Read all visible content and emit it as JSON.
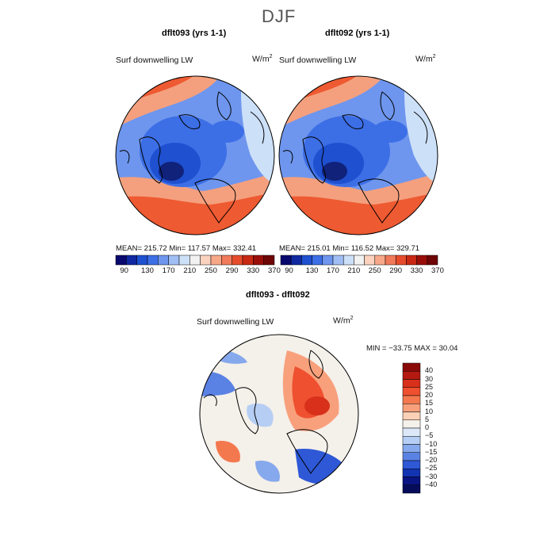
{
  "season": "DJF",
  "panels": [
    {
      "title": "dflt093 (yrs 1-1)",
      "variable": "Surf downwelling LW",
      "units": "W/m",
      "units_sup": "2",
      "stats_text": "MEAN= 215.72   Min= 117.57   Max= 332.41"
    },
    {
      "title": "dflt092 (yrs 1-1)",
      "variable": "Surf downwelling LW",
      "units": "W/m",
      "units_sup": "2",
      "stats_text": "MEAN= 215.01   Min= 116.52   Max= 329.71"
    }
  ],
  "diff_panel": {
    "title": "dflt093 - dflt092",
    "variable": "Surf downwelling LW",
    "units": "W/m",
    "units_sup": "2",
    "minmax_text": "MIN = −33.75  MAX =   30.04"
  },
  "colorbar_abs": {
    "colors": [
      "#08086e",
      "#1028a0",
      "#1e50d0",
      "#3c6ee6",
      "#6e96ee",
      "#a0bef4",
      "#cce0f8",
      "#f2f2f2",
      "#fad2be",
      "#f6a888",
      "#f07a5a",
      "#e64c2c",
      "#c82814",
      "#9a0e0a",
      "#6e0606"
    ],
    "tick_labels": [
      "90",
      "130",
      "170",
      "210",
      "250",
      "290",
      "330",
      "370"
    ]
  },
  "colorbar_diff": {
    "levels_desc": [
      "40",
      "30",
      "25",
      "20",
      "15",
      "10",
      "5",
      "0",
      "−5",
      "−10",
      "−15",
      "−20",
      "−25",
      "−30",
      "−40"
    ],
    "colors_desc": [
      "#8a0a0a",
      "#b41a12",
      "#d8301a",
      "#ee5030",
      "#f4784e",
      "#f8a07c",
      "#fad0b6",
      "#f4f0ea",
      "#dce8f8",
      "#b6cef4",
      "#86a8ec",
      "#5a82e4",
      "#2e58d6",
      "#1234b2",
      "#0a1482",
      "#060c5a"
    ]
  },
  "map_palette": {
    "ocean_warm": "#ee5a32",
    "mid_warm": "#f4a07e",
    "neutral": "#f2f0ee",
    "cold_light": "#a8c4f2",
    "cold_mid": "#5a86e2",
    "cold_deep": "#2a4cc2",
    "cold_core": "#10227a"
  }
}
